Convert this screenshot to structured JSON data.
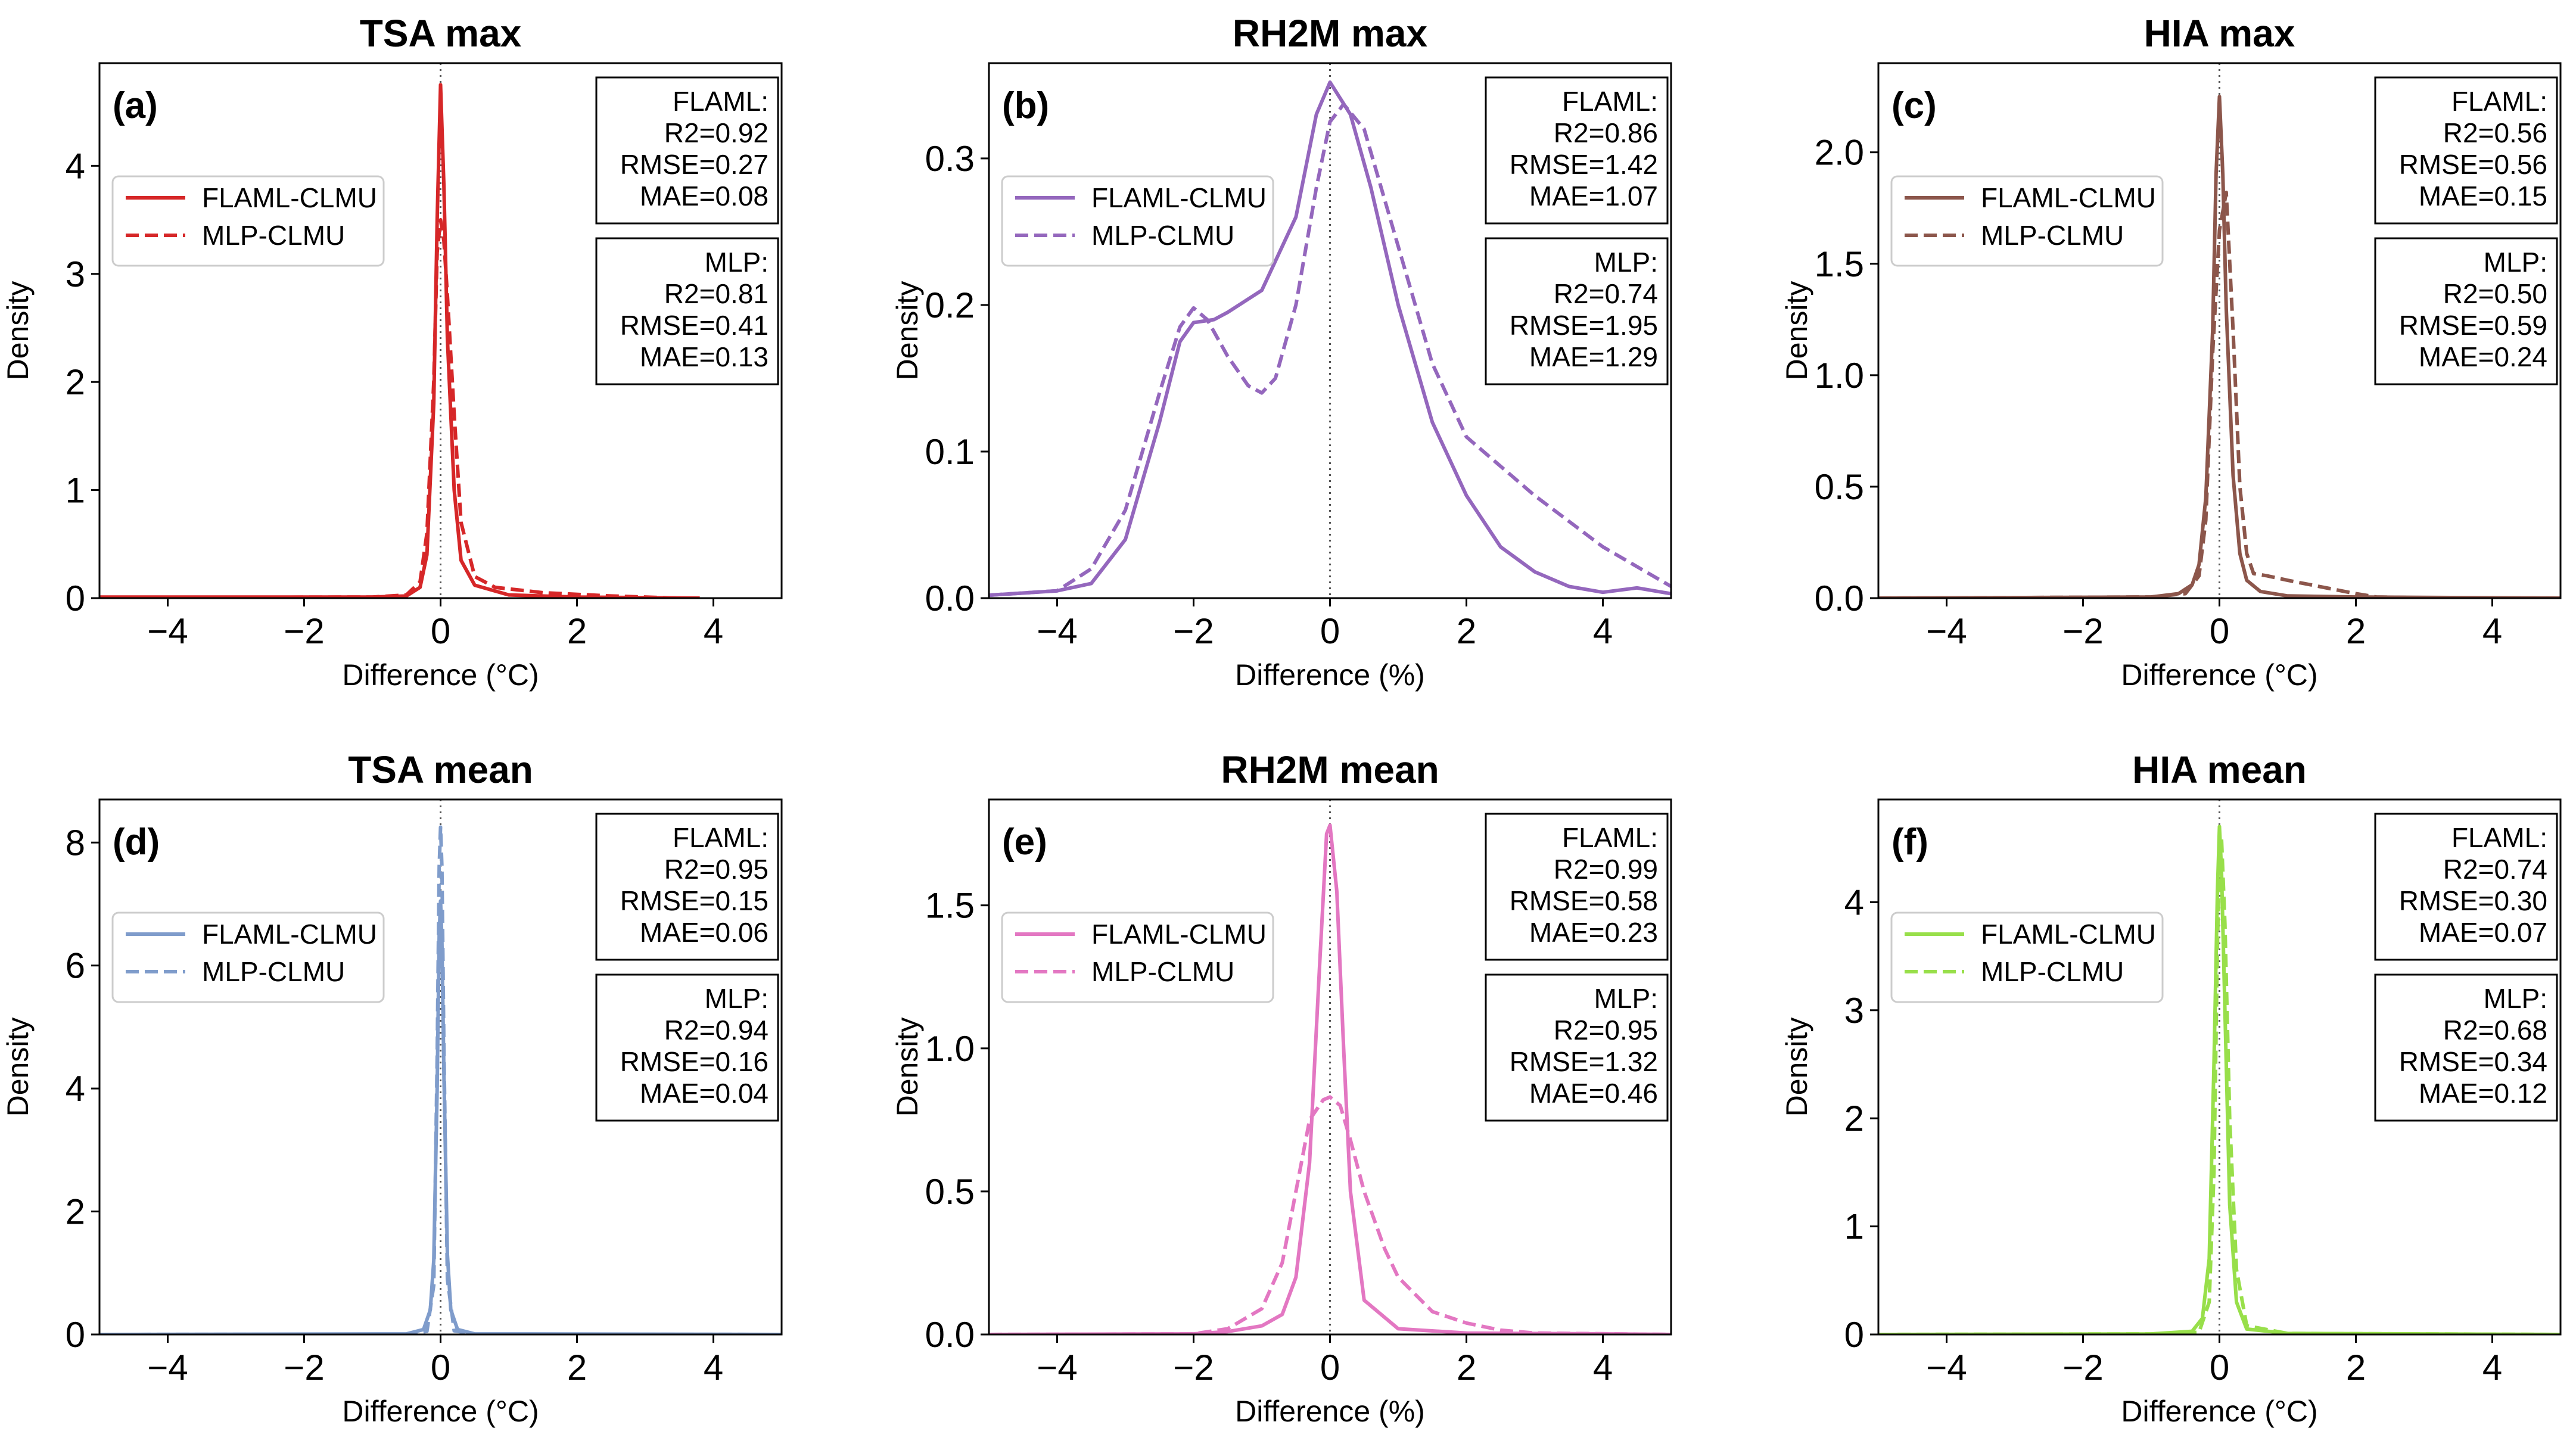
{
  "chart_data": [
    {
      "type": "line",
      "panel_label": "(a)",
      "title": "TSA max",
      "xlabel": "Difference (°C)",
      "ylabel": "Density",
      "xlim": [
        -5,
        5
      ],
      "ylim": [
        0,
        4.95
      ],
      "xticks": [
        -4,
        -2,
        0,
        2,
        4
      ],
      "yticks": [
        0,
        1,
        2,
        3,
        4
      ],
      "color": "#d62728",
      "grid": false,
      "legend_placement": "upper-left",
      "vline_x": 0,
      "series": [
        {
          "name": "FLAML-CLMU",
          "style": "solid",
          "x": [
            -5,
            -1,
            -0.5,
            -0.3,
            -0.2,
            -0.1,
            -0.05,
            0,
            0.05,
            0.1,
            0.2,
            0.3,
            0.5,
            1,
            2,
            3,
            3.8
          ],
          "y": [
            0.01,
            0.01,
            0.02,
            0.1,
            0.4,
            1.8,
            3.5,
            4.75,
            3.8,
            2.4,
            1.0,
            0.35,
            0.12,
            0.03,
            0.01,
            0.005,
            0.0
          ]
        },
        {
          "name": "MLP-CLMU",
          "style": "dashed",
          "x": [
            -5,
            -1,
            -0.5,
            -0.3,
            -0.2,
            -0.1,
            -0.05,
            0,
            0.05,
            0.1,
            0.2,
            0.3,
            0.5,
            0.8,
            1.5,
            2.5,
            3.5
          ],
          "y": [
            0.005,
            0.01,
            0.03,
            0.15,
            0.6,
            2.0,
            3.2,
            3.5,
            3.3,
            2.8,
            1.7,
            0.7,
            0.2,
            0.1,
            0.05,
            0.02,
            0.0
          ]
        }
      ],
      "stats": [
        {
          "header": "FLAML:",
          "lines": [
            "R2=0.92",
            "RMSE=0.27",
            "MAE=0.08"
          ]
        },
        {
          "header": "MLP:",
          "lines": [
            "R2=0.81",
            "RMSE=0.41",
            "MAE=0.13"
          ]
        }
      ]
    },
    {
      "type": "line",
      "panel_label": "(b)",
      "title": "RH2M max",
      "xlabel": "Difference (%)",
      "ylabel": "Density",
      "xlim": [
        -5,
        5
      ],
      "ylim": [
        0,
        0.365
      ],
      "xticks": [
        -4,
        -2,
        0,
        2,
        4
      ],
      "yticks": [
        0.0,
        0.1,
        0.2,
        0.3
      ],
      "color": "#9467bd",
      "grid": false,
      "legend_placement": "upper-left",
      "vline_x": 0,
      "series": [
        {
          "name": "FLAML-CLMU",
          "style": "solid",
          "x": [
            -5,
            -4,
            -3.5,
            -3,
            -2.5,
            -2.2,
            -2,
            -1.7,
            -1.5,
            -1,
            -0.5,
            -0.2,
            0,
            0.3,
            0.6,
            1,
            1.5,
            2,
            2.5,
            3,
            3.5,
            4,
            4.5,
            5
          ],
          "y": [
            0.002,
            0.005,
            0.01,
            0.04,
            0.12,
            0.175,
            0.188,
            0.19,
            0.195,
            0.21,
            0.26,
            0.33,
            0.352,
            0.33,
            0.28,
            0.2,
            0.12,
            0.07,
            0.035,
            0.018,
            0.008,
            0.004,
            0.007,
            0.003
          ]
        },
        {
          "name": "MLP-CLMU",
          "style": "dashed",
          "x": [
            -5,
            -4,
            -3.5,
            -3,
            -2.5,
            -2.2,
            -2,
            -1.8,
            -1.5,
            -1.2,
            -1,
            -0.8,
            -0.5,
            -0.2,
            0,
            0.2,
            0.5,
            1,
            1.5,
            2,
            3,
            4,
            5
          ],
          "y": [
            0.002,
            0.005,
            0.02,
            0.06,
            0.14,
            0.185,
            0.198,
            0.19,
            0.165,
            0.145,
            0.14,
            0.15,
            0.2,
            0.28,
            0.325,
            0.337,
            0.32,
            0.24,
            0.16,
            0.11,
            0.07,
            0.035,
            0.008
          ]
        }
      ],
      "stats": [
        {
          "header": "FLAML:",
          "lines": [
            "R2=0.86",
            "RMSE=1.42",
            "MAE=1.07"
          ]
        },
        {
          "header": "MLP:",
          "lines": [
            "R2=0.74",
            "RMSE=1.95",
            "MAE=1.29"
          ]
        }
      ]
    },
    {
      "type": "line",
      "panel_label": "(c)",
      "title": "HIA max",
      "xlabel": "Difference (°C)",
      "ylabel": "Density",
      "xlim": [
        -5,
        5
      ],
      "ylim": [
        0,
        2.4
      ],
      "xticks": [
        -4,
        -2,
        0,
        2,
        4
      ],
      "yticks": [
        0.0,
        0.5,
        1.0,
        1.5,
        2.0
      ],
      "color": "#8c564b",
      "grid": false,
      "legend_placement": "upper-left",
      "vline_x": 0,
      "series": [
        {
          "name": "FLAML-CLMU",
          "style": "solid",
          "x": [
            -5,
            -1,
            -0.6,
            -0.4,
            -0.3,
            -0.2,
            -0.1,
            -0.05,
            0,
            0.05,
            0.1,
            0.2,
            0.3,
            0.4,
            0.6,
            1,
            2,
            5
          ],
          "y": [
            0.0,
            0.005,
            0.02,
            0.06,
            0.15,
            0.45,
            1.2,
            1.9,
            2.25,
            1.9,
            1.3,
            0.55,
            0.2,
            0.08,
            0.03,
            0.01,
            0.005,
            0.0
          ]
        },
        {
          "name": "MLP-CLMU",
          "style": "dashed",
          "x": [
            -5,
            -1,
            -0.5,
            -0.3,
            -0.2,
            -0.1,
            0,
            0.1,
            0.2,
            0.3,
            0.4,
            0.5,
            0.7,
            1,
            1.5,
            2,
            2.3,
            3,
            5
          ],
          "y": [
            0.0,
            0.005,
            0.02,
            0.1,
            0.35,
            1.1,
            1.65,
            1.82,
            1.2,
            0.5,
            0.2,
            0.11,
            0.1,
            0.08,
            0.05,
            0.02,
            0.005,
            0.002,
            0.0
          ]
        }
      ],
      "stats": [
        {
          "header": "FLAML:",
          "lines": [
            "R2=0.56",
            "RMSE=0.56",
            "MAE=0.15"
          ]
        },
        {
          "header": "MLP:",
          "lines": [
            "R2=0.50",
            "RMSE=0.59",
            "MAE=0.24"
          ]
        }
      ]
    },
    {
      "type": "line",
      "panel_label": "(d)",
      "title": "TSA mean",
      "xlabel": "Difference (°C)",
      "ylabel": "Density",
      "xlim": [
        -5,
        5
      ],
      "ylim": [
        0,
        8.7
      ],
      "xticks": [
        -4,
        -2,
        0,
        2,
        4
      ],
      "yticks": [
        0,
        2,
        4,
        6,
        8
      ],
      "color": "#7f9ccb",
      "grid": false,
      "legend_placement": "upper-left",
      "vline_x": 0,
      "series": [
        {
          "name": "FLAML-CLMU",
          "style": "solid",
          "x": [
            -5,
            -0.5,
            -0.25,
            -0.15,
            -0.1,
            -0.05,
            -0.02,
            0,
            0.02,
            0.05,
            0.1,
            0.15,
            0.25,
            0.5,
            5
          ],
          "y": [
            0.0,
            0.01,
            0.08,
            0.4,
            1.2,
            4.0,
            6.5,
            7.05,
            6.4,
            4.2,
            1.3,
            0.4,
            0.08,
            0.01,
            0.0
          ]
        },
        {
          "name": "MLP-CLMU",
          "style": "dashed",
          "x": [
            -5,
            -0.5,
            -0.2,
            -0.1,
            -0.05,
            -0.02,
            0,
            0.02,
            0.05,
            0.1,
            0.2,
            0.5,
            5
          ],
          "y": [
            0.0,
            0.005,
            0.05,
            0.8,
            4.5,
            7.6,
            8.25,
            7.6,
            4.6,
            0.9,
            0.06,
            0.005,
            0.0
          ]
        }
      ],
      "stats": [
        {
          "header": "FLAML:",
          "lines": [
            "R2=0.95",
            "RMSE=0.15",
            "MAE=0.06"
          ]
        },
        {
          "header": "MLP:",
          "lines": [
            "R2=0.94",
            "RMSE=0.16",
            "MAE=0.04"
          ]
        }
      ]
    },
    {
      "type": "line",
      "panel_label": "(e)",
      "title": "RH2M mean",
      "xlabel": "Difference (%)",
      "ylabel": "Density",
      "xlim": [
        -5,
        5
      ],
      "ylim": [
        0,
        1.87
      ],
      "xticks": [
        -4,
        -2,
        0,
        2,
        4
      ],
      "yticks": [
        0.0,
        0.5,
        1.0,
        1.5
      ],
      "color": "#e377c2",
      "grid": false,
      "legend_placement": "upper-left",
      "vline_x": 0,
      "series": [
        {
          "name": "FLAML-CLMU",
          "style": "solid",
          "x": [
            -5,
            -2,
            -1.5,
            -1,
            -0.7,
            -0.5,
            -0.3,
            -0.15,
            -0.05,
            0,
            0.1,
            0.2,
            0.3,
            0.5,
            1,
            2,
            4,
            5
          ],
          "y": [
            0.0,
            0.002,
            0.01,
            0.03,
            0.07,
            0.2,
            0.6,
            1.3,
            1.75,
            1.78,
            1.55,
            1.0,
            0.5,
            0.12,
            0.02,
            0.005,
            0.002,
            0.0
          ]
        },
        {
          "name": "MLP-CLMU",
          "style": "dashed",
          "x": [
            -5,
            -2,
            -1.5,
            -1,
            -0.7,
            -0.5,
            -0.3,
            -0.1,
            0,
            0.15,
            0.3,
            0.5,
            0.8,
            1,
            1.5,
            2,
            2.5,
            3,
            5
          ],
          "y": [
            0.0,
            0.002,
            0.02,
            0.09,
            0.25,
            0.5,
            0.75,
            0.82,
            0.83,
            0.8,
            0.68,
            0.5,
            0.3,
            0.2,
            0.08,
            0.04,
            0.015,
            0.005,
            0.0
          ]
        }
      ],
      "stats": [
        {
          "header": "FLAML:",
          "lines": [
            "R2=0.99",
            "RMSE=0.58",
            "MAE=0.23"
          ]
        },
        {
          "header": "MLP:",
          "lines": [
            "R2=0.95",
            "RMSE=1.32",
            "MAE=0.46"
          ]
        }
      ]
    },
    {
      "type": "line",
      "panel_label": "(f)",
      "title": "HIA mean",
      "xlabel": "Difference (°C)",
      "ylabel": "Density",
      "xlim": [
        -5,
        5
      ],
      "ylim": [
        0,
        4.95
      ],
      "xticks": [
        -4,
        -2,
        0,
        2,
        4
      ],
      "yticks": [
        0,
        1,
        2,
        3,
        4
      ],
      "color": "#98df4a",
      "grid": false,
      "legend_placement": "upper-left",
      "vline_x": 0,
      "series": [
        {
          "name": "FLAML-CLMU",
          "style": "solid",
          "x": [
            -5,
            -1,
            -0.4,
            -0.25,
            -0.15,
            -0.08,
            -0.03,
            0,
            0.03,
            0.08,
            0.15,
            0.25,
            0.4,
            1,
            5
          ],
          "y": [
            0.0,
            0.005,
            0.03,
            0.15,
            0.7,
            2.5,
            4.1,
            4.7,
            4.3,
            3.0,
            1.2,
            0.3,
            0.05,
            0.01,
            0.0
          ]
        },
        {
          "name": "MLP-CLMU",
          "style": "dashed",
          "x": [
            -5,
            -1,
            -0.3,
            -0.15,
            -0.08,
            -0.03,
            0,
            0.03,
            0.08,
            0.15,
            0.25,
            0.4,
            1,
            5
          ],
          "y": [
            0.0,
            0.005,
            0.02,
            0.3,
            1.5,
            3.6,
            4.4,
            4.6,
            3.8,
            2.0,
            0.6,
            0.08,
            0.01,
            0.0
          ]
        }
      ],
      "stats": [
        {
          "header": "FLAML:",
          "lines": [
            "R2=0.74",
            "RMSE=0.30",
            "MAE=0.07"
          ]
        },
        {
          "header": "MLP:",
          "lines": [
            "R2=0.68",
            "RMSE=0.34",
            "MAE=0.12"
          ]
        }
      ]
    }
  ]
}
